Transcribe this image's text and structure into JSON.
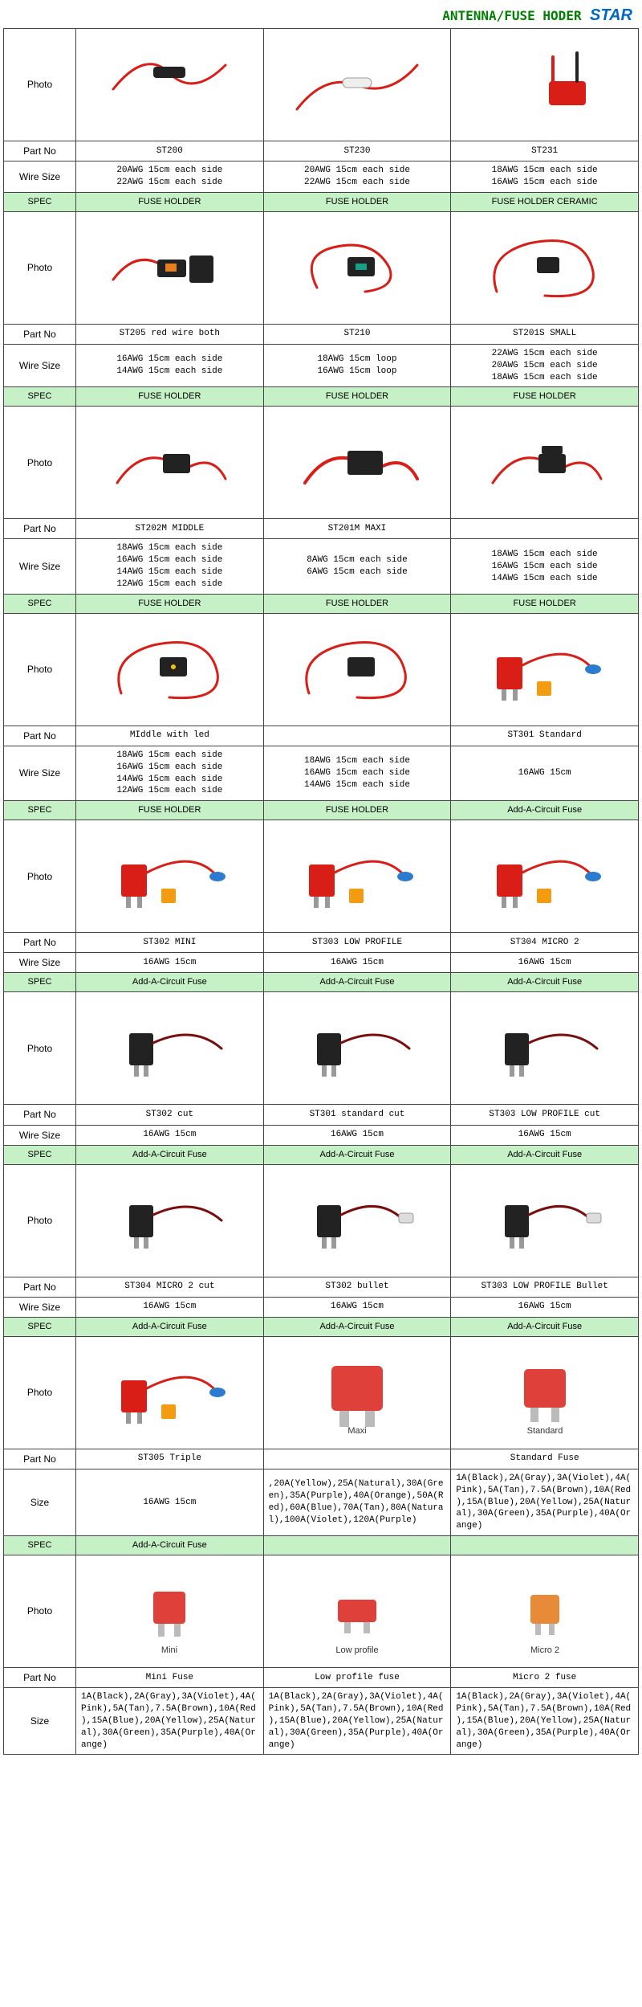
{
  "header": {
    "title": "ANTENNA/FUSE HODER",
    "brand": "STAR",
    "title_color": "#008000",
    "brand_color": "#0066cc"
  },
  "labels": {
    "photo": "Photo",
    "partno": "Part No",
    "wiresize": "Wire Size",
    "spec": "SPEC",
    "size": "Size"
  },
  "specs": {
    "fuse_holder": "FUSE HOLDER",
    "fuse_holder_ceramic": "FUSE HOLDER CERAMIC",
    "add_a_circuit": "Add-A-Circuit Fuse"
  },
  "groups": [
    {
      "row": [
        {
          "part": "ST200",
          "wire": "20AWG 15cm each side\n22AWG 15cm each side",
          "spec": "FUSE HOLDER",
          "img": "wire-tube-black"
        },
        {
          "part": "ST230",
          "wire": "20AWG 15cm each side\n22AWG 15cm each side",
          "spec": "FUSE HOLDER",
          "img": "wire-glass-fuse"
        },
        {
          "part": "ST231",
          "wire": "18AWG 15cm each side\n16AWG 15cm each side",
          "spec": "FUSE HOLDER CERAMIC",
          "img": "red-tap-wires"
        }
      ]
    },
    {
      "row": [
        {
          "part": "ST205 red wire both",
          "wire": "16AWG 15cm each side\n14AWG 15cm each side",
          "spec": "FUSE HOLDER",
          "img": "holder-black-org"
        },
        {
          "part": "ST210",
          "wire": "18AWG 15cm loop\n16AWG 15cm loop",
          "spec": "FUSE HOLDER",
          "img": "holder-loop-green"
        },
        {
          "part": "ST201S SMALL",
          "wire": "22AWG 15cm each side\n20AWG 15cm each side\n18AWG 15cm each side",
          "spec": "FUSE HOLDER",
          "img": "holder-loop-small"
        }
      ]
    },
    {
      "row": [
        {
          "part": "ST202M MIDDLE",
          "wire": "18AWG 15cm each side\n16AWG 15cm each side\n14AWG 15cm each side\n12AWG 15cm each side",
          "spec": "FUSE HOLDER",
          "img": "holder-mid"
        },
        {
          "part": "ST201M MAXI",
          "wire": "8AWG 15cm each side\n6AWG 15cm each side",
          "spec": "FUSE HOLDER",
          "img": "holder-maxi"
        },
        {
          "part": "",
          "wire": "18AWG 15cm each side\n16AWG 15cm each side\n14AWG 15cm each side",
          "spec": "FUSE HOLDER",
          "img": "holder-cap"
        }
      ]
    },
    {
      "row": [
        {
          "part": "MIddle with led",
          "wire": "18AWG 15cm each side\n16AWG 15cm each side\n14AWG 15cm each side\n12AWG 15cm each side",
          "spec": "FUSE HOLDER",
          "img": "holder-led"
        },
        {
          "part": "",
          "wire": "18AWG 15cm each side\n16AWG 15cm each side\n14AWG 15cm each side",
          "spec": "FUSE HOLDER",
          "img": "holder-plain"
        },
        {
          "part": "ST301 Standard",
          "wire": "16AWG 15cm",
          "spec": "Add-A-Circuit Fuse",
          "img": "tap-standard"
        }
      ]
    },
    {
      "row": [
        {
          "part": "ST302 MINI",
          "wire": "16AWG 15cm",
          "spec": "Add-A-Circuit Fuse",
          "img": "tap-mini"
        },
        {
          "part": "ST303 LOW PROFILE",
          "wire": "16AWG 15cm",
          "spec": "Add-A-Circuit Fuse",
          "img": "tap-lowprofile"
        },
        {
          "part": "ST304 MICRO 2",
          "wire": "16AWG 15cm",
          "spec": "Add-A-Circuit Fuse",
          "img": "tap-micro2"
        }
      ]
    },
    {
      "row": [
        {
          "part": "ST302 cut",
          "wire": "16AWG 15cm",
          "spec": "Add-A-Circuit Fuse",
          "img": "tap-cut"
        },
        {
          "part": "ST301 standard cut",
          "wire": "16AWG 15cm",
          "spec": "Add-A-Circuit Fuse",
          "img": "tap-cut"
        },
        {
          "part": "ST303 LOW PROFILE cut",
          "wire": "16AWG 15cm",
          "spec": "Add-A-Circuit Fuse",
          "img": "tap-cut"
        }
      ]
    },
    {
      "row": [
        {
          "part": "ST304 MICRO 2 cut",
          "wire": "16AWG 15cm",
          "spec": "Add-A-Circuit Fuse",
          "img": "tap-cut"
        },
        {
          "part": "ST302 bullet",
          "wire": "16AWG 15cm",
          "spec": "Add-A-Circuit Fuse",
          "img": "tap-bullet"
        },
        {
          "part": "ST303 LOW PROFILE Bullet",
          "wire": "16AWG 15cm",
          "spec": "Add-A-Circuit Fuse",
          "img": "tap-bullet"
        }
      ]
    },
    {
      "size_row": true,
      "row": [
        {
          "part": "ST305 Triple",
          "size": "16AWG 15cm",
          "spec": "Add-A-Circuit Fuse",
          "img": "tap-triple"
        },
        {
          "part": "",
          "caption": "Maxi",
          "size": ",20A(Yellow),25A(Natural),30A(Green),35A(Purple),40A(Orange),50A(Red),60A(Blue),70A(Tan),80A(Natural),100A(Violet),120A(Purple)",
          "spec": "",
          "img": "fuse-maxi"
        },
        {
          "part": "Standard Fuse",
          "caption": "Standard",
          "size": "1A(Black),2A(Gray),3A(Violet),4A(Pink),5A(Tan),7.5A(Brown),10A(Red),15A(Blue),20A(Yellow),25A(Natural),30A(Green),35A(Purple),40A(Orange)",
          "spec": "",
          "img": "fuse-standard"
        }
      ]
    },
    {
      "size_row": true,
      "no_spec": true,
      "row": [
        {
          "part": "Mini Fuse",
          "caption": "Mini",
          "size": "1A(Black),2A(Gray),3A(Violet),4A(Pink),5A(Tan),7.5A(Brown),10A(Red),15A(Blue),20A(Yellow),25A(Natural),30A(Green),35A(Purple),40A(Orange)",
          "img": "fuse-mini"
        },
        {
          "part": "Low profile fuse",
          "caption": "Low profile",
          "size": "1A(Black),2A(Gray),3A(Violet),4A(Pink),5A(Tan),7.5A(Brown),10A(Red),15A(Blue),20A(Yellow),25A(Natural),30A(Green),35A(Purple),40A(Orange)",
          "img": "fuse-lowprofile"
        },
        {
          "part": "Micro 2 fuse",
          "caption": "Micro 2",
          "size": "1A(Black),2A(Gray),3A(Violet),4A(Pink),5A(Tan),7.5A(Brown),10A(Red),15A(Blue),20A(Yellow),25A(Natural),30A(Green),35A(Purple),40A(Orange)",
          "img": "fuse-micro2"
        }
      ]
    }
  ],
  "colors": {
    "spec_bg": "#c6f0c6",
    "border": "#444444",
    "red": "#d91e18",
    "black": "#222"
  }
}
